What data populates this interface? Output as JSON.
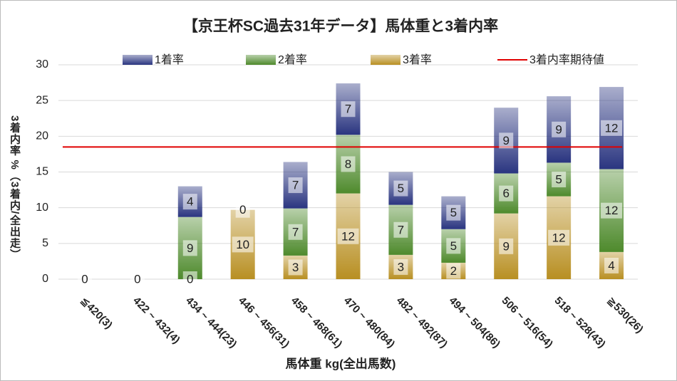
{
  "chart_data": {
    "type": "stacked-bar",
    "title": "【京王杯SC過去31年データ】馬体重と3着内率",
    "x_label": "馬体重 kg(全出馬数)",
    "y_label": "3着内率 %（3着内/全出走）",
    "categories": [
      "≦420(3)",
      "422 ~ 432(4)",
      "434 ~ 444(23)",
      "446 ~ 456(31)",
      "458 ~ 468(61)",
      "470 ~ 480(84)",
      "482 ~ 492(87)",
      "494 ~ 504(86)",
      "506 ~ 516(54)",
      "518 ~ 528(43)",
      "≧530(26)"
    ],
    "series": [
      {
        "name": "1着率",
        "color": "#2a3580",
        "values": [
          0,
          0,
          4.3,
          0,
          6.5,
          7.2,
          4.6,
          4.6,
          9.2,
          9.3,
          11.5
        ],
        "value_labels": [
          null,
          null,
          "4",
          "0",
          "7",
          "7",
          "5",
          "5",
          "9",
          "9",
          "12"
        ]
      },
      {
        "name": "2着率",
        "color": "#4e8a2c",
        "values": [
          0,
          0,
          8.7,
          0,
          6.6,
          8.2,
          7.0,
          4.7,
          5.6,
          4.7,
          11.6
        ],
        "value_labels": [
          null,
          null,
          "9",
          null,
          "7",
          "8",
          "7",
          "5",
          "6",
          "5",
          "12"
        ]
      },
      {
        "name": "3着率",
        "color": "#b88f22",
        "values": [
          0,
          0,
          0,
          9.7,
          3.3,
          12.0,
          3.4,
          2.3,
          9.2,
          11.6,
          3.8
        ],
        "value_labels": [
          "0",
          "0",
          "0",
          "10",
          "3",
          "12",
          "3",
          "2",
          "9",
          "12",
          "4"
        ]
      }
    ],
    "reference_line": {
      "name": "3着内率期待値",
      "color": "#e00000",
      "value": 18.5
    },
    "ylim": [
      0,
      30
    ],
    "yticks": [
      0,
      5,
      10,
      15,
      20,
      25,
      30
    ],
    "grid": true
  }
}
